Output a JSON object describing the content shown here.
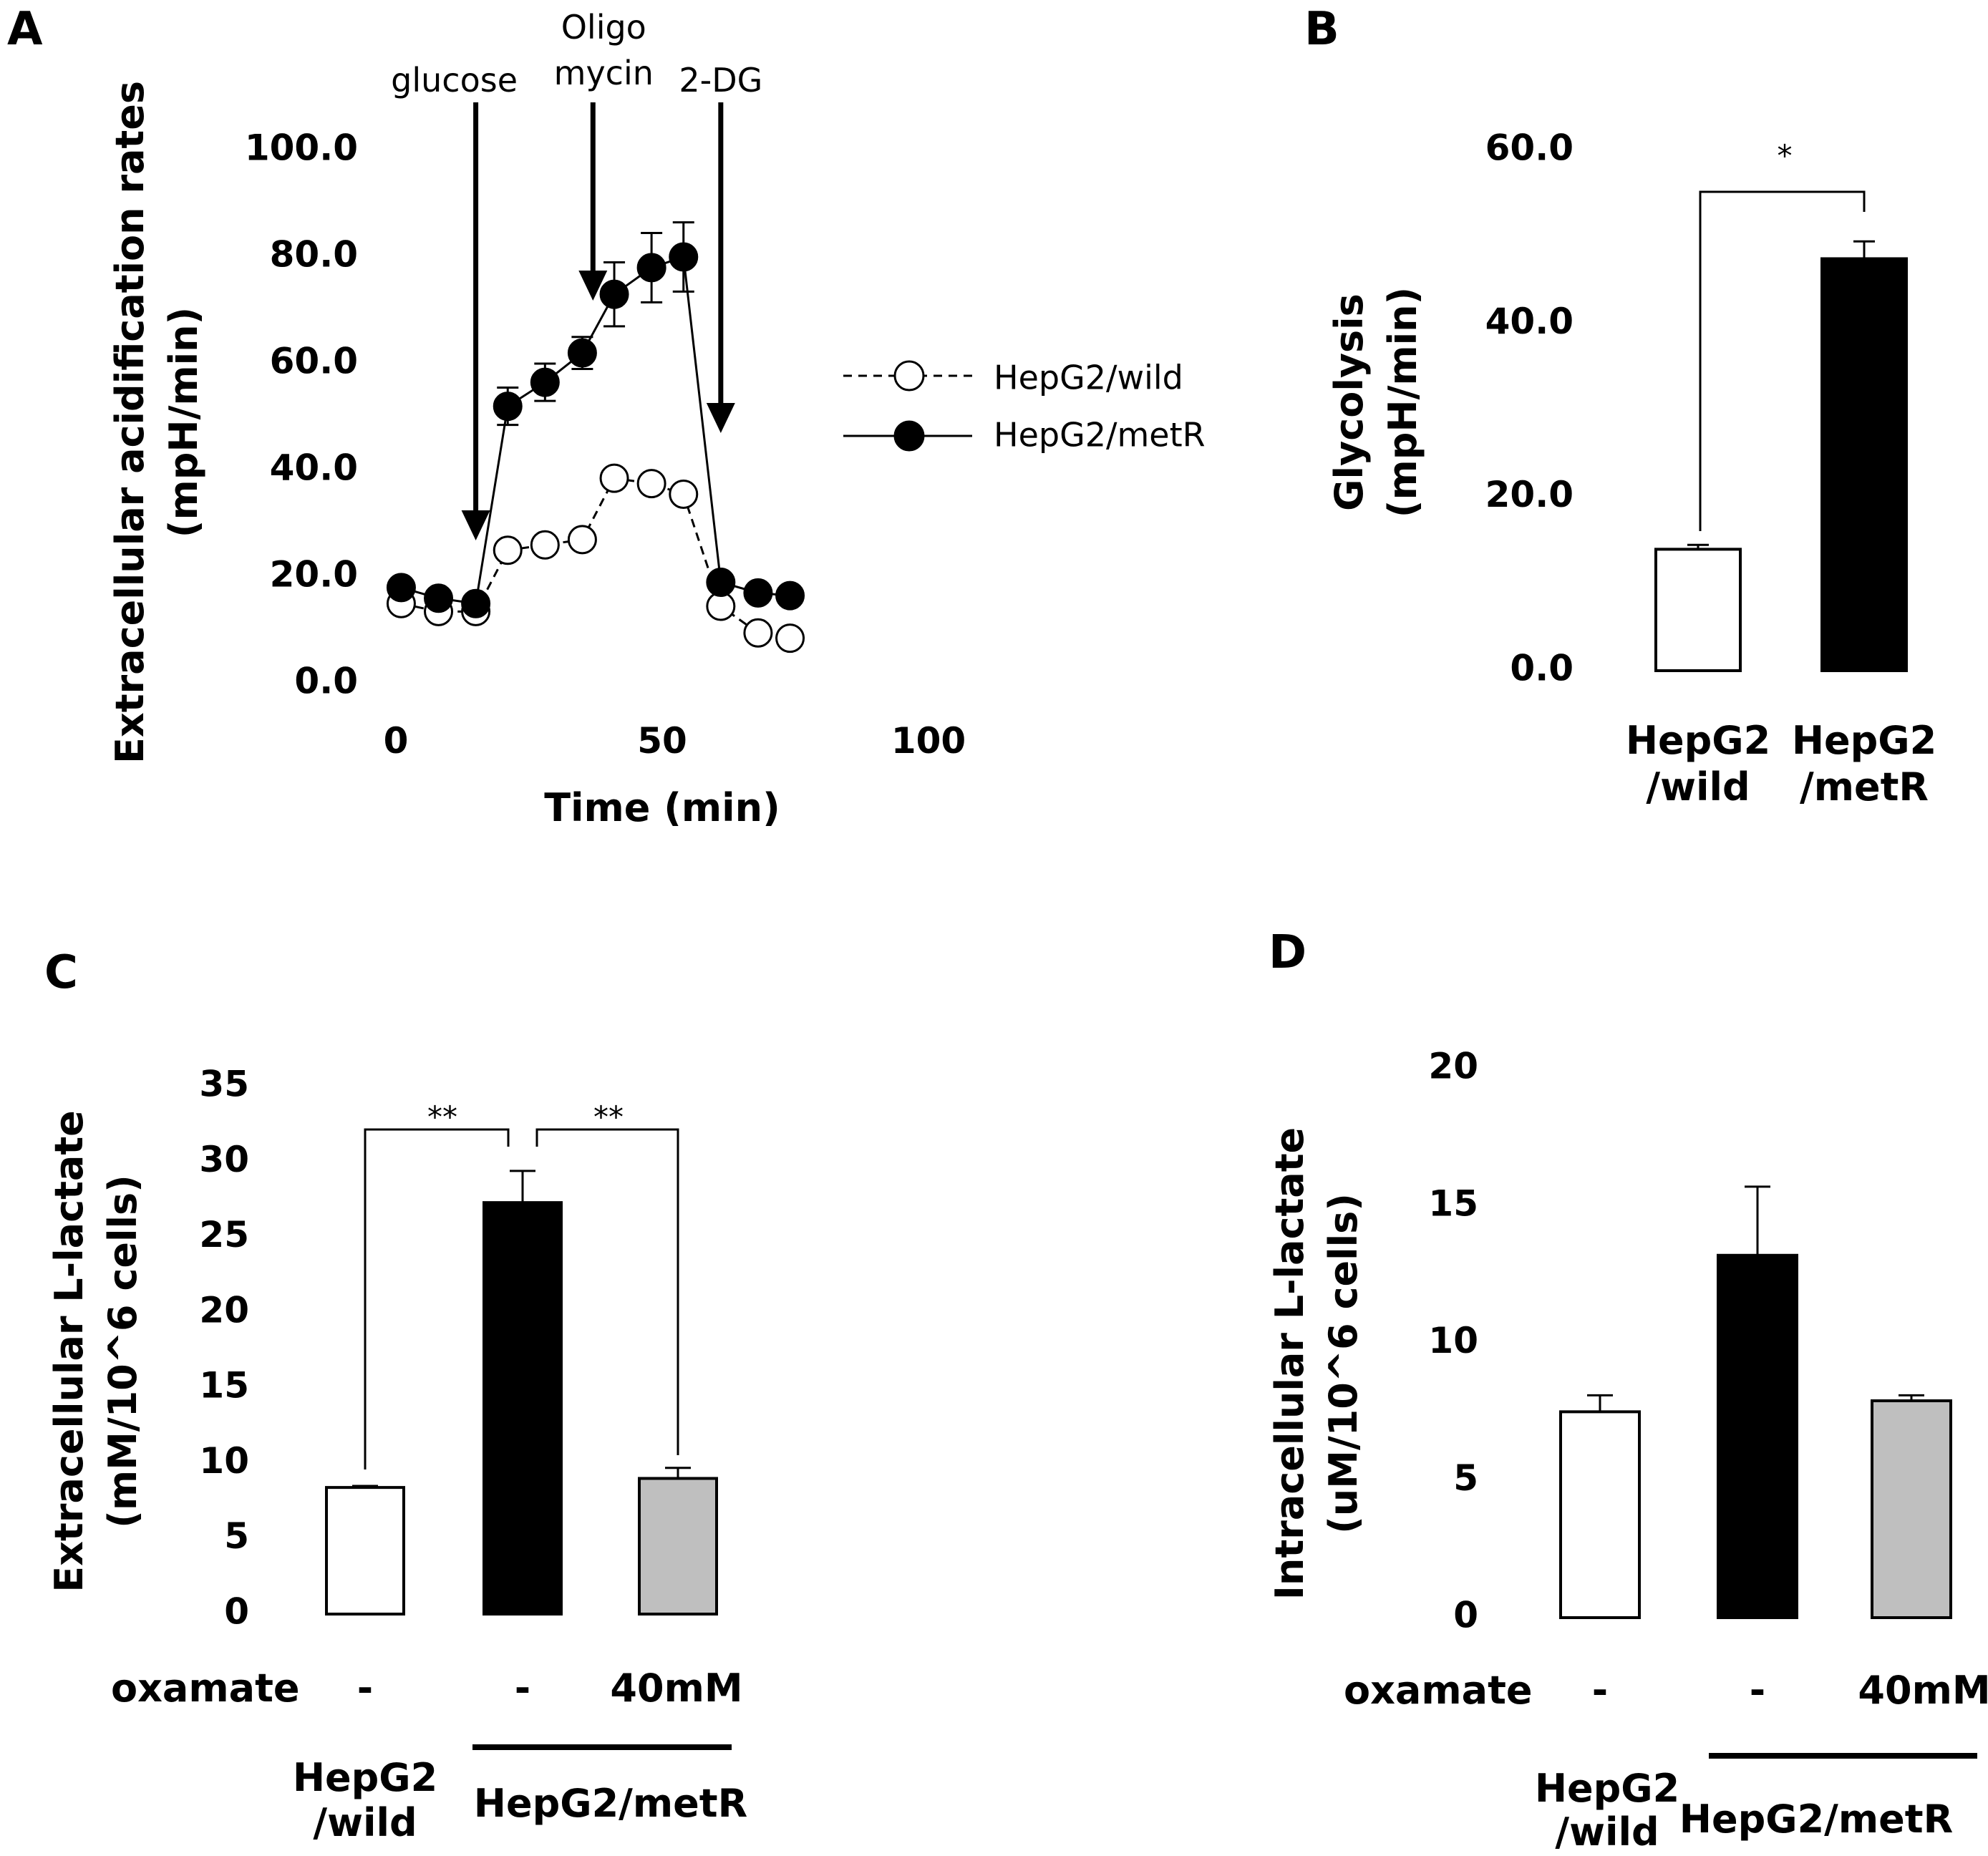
{
  "panels": {
    "A": "A",
    "B": "B",
    "C": "C",
    "D": "D"
  },
  "colors": {
    "black": "#000000",
    "white": "#ffffff",
    "gray": "#bfbfbf"
  },
  "chart_data": [
    {
      "id": "A",
      "type": "line",
      "title": "",
      "xlabel": "Time (min)",
      "ylabel_line1": "Extracellular acidification rates",
      "ylabel_line2": "(mpH/min)",
      "xlim": [
        0,
        100
      ],
      "ylim": [
        0,
        100
      ],
      "x_ticks": [
        "0",
        "50",
        "100"
      ],
      "y_ticks": [
        "0.0",
        "20.0",
        "40.0",
        "60.0",
        "80.0",
        "100.0"
      ],
      "annotations": [
        {
          "label": "glucose",
          "x": 15
        },
        {
          "label_line1": "Oligo",
          "label_line2": "mycin",
          "x": 37
        },
        {
          "label": "2-DG",
          "x": 61
        }
      ],
      "series": [
        {
          "name": "HepG2/wild",
          "marker": "open-circle",
          "line": "dashed",
          "x": [
            1,
            8,
            15,
            21,
            28,
            35,
            41,
            48,
            54,
            61,
            68,
            74
          ],
          "y": [
            15,
            13.5,
            13.5,
            25,
            26,
            27,
            38.5,
            37.5,
            35.5,
            14.5,
            9.5,
            8.5
          ],
          "err": [
            0,
            0,
            0,
            0,
            0,
            0,
            0,
            0,
            0,
            0,
            0,
            0
          ]
        },
        {
          "name": "HepG2/metR",
          "marker": "filled-circle",
          "line": "solid",
          "x": [
            1,
            8,
            15,
            21,
            28,
            35,
            41,
            48,
            54,
            61,
            68,
            74
          ],
          "y": [
            18,
            16,
            15,
            52,
            56.5,
            62,
            73,
            78,
            80,
            19,
            17,
            16.5
          ],
          "err": [
            1.5,
            1.5,
            1.5,
            3.5,
            3.5,
            3,
            6,
            6.5,
            6.5,
            1.5,
            1,
            1
          ]
        }
      ]
    },
    {
      "id": "B",
      "type": "bar",
      "ylabel_line1": "Glycolysis",
      "ylabel_line2": "(mpH/min)",
      "ylim": [
        0,
        60
      ],
      "y_ticks": [
        "0.0",
        "20.0",
        "40.0",
        "60.0"
      ],
      "categories": [
        {
          "line1": "HepG2",
          "line2": "/wild"
        },
        {
          "line1": "HepG2",
          "line2": "/metR"
        }
      ],
      "values": [
        14,
        47.5
      ],
      "errors": [
        0.5,
        2
      ],
      "fills": [
        "#ffffff",
        "#000000"
      ],
      "significance": "*"
    },
    {
      "id": "C",
      "type": "bar",
      "ylabel_line1": "Extracellular L-lactate",
      "ylabel_line2": "(mM/10^6 cells)",
      "ylim": [
        0,
        35
      ],
      "y_ticks": [
        "0",
        "5",
        "10",
        "15",
        "20",
        "25",
        "30",
        "35"
      ],
      "values": [
        8.4,
        27.3,
        9.0
      ],
      "errors": [
        0.1,
        2.1,
        0.7
      ],
      "fills": [
        "#ffffff",
        "#000000",
        "#bfbfbf"
      ],
      "treatment_label": "oxamate",
      "treatments": [
        "-",
        "-",
        "40mM"
      ],
      "group_wild_line1": "HepG2",
      "group_wild_line2": "/wild",
      "group_metR": "HepG2/metR",
      "significance": [
        "**",
        "**"
      ]
    },
    {
      "id": "D",
      "type": "bar",
      "ylabel_line1": "Intracellular L-lactate",
      "ylabel_line2": "(uM/10^6 cells)",
      "ylim": [
        0,
        20
      ],
      "y_ticks": [
        "0",
        "5",
        "10",
        "15",
        "20"
      ],
      "values": [
        7.5,
        13.2,
        7.9
      ],
      "errors": [
        0.6,
        2.5,
        0.2
      ],
      "fills": [
        "#ffffff",
        "#000000",
        "#bfbfbf"
      ],
      "treatment_label": "oxamate",
      "treatments": [
        "-",
        "-",
        "40mM"
      ],
      "group_wild_line1": "HepG2",
      "group_wild_line2": "/wild",
      "group_metR": "HepG2/metR"
    }
  ]
}
